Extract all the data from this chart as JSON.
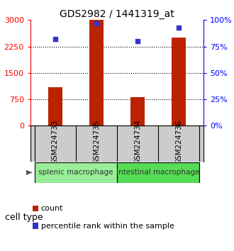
{
  "title": "GDS2982 / 1441319_at",
  "samples": [
    "GSM224733",
    "GSM224735",
    "GSM224734",
    "GSM224736"
  ],
  "counts": [
    1100,
    3000,
    800,
    2500
  ],
  "percentiles": [
    82,
    97,
    80,
    93
  ],
  "bar_color": "#bb2200",
  "dot_color": "#3333cc",
  "left_yticks": [
    0,
    750,
    1500,
    2250,
    3000
  ],
  "right_yticks": [
    0,
    25,
    50,
    75,
    100
  ],
  "left_ylim": [
    0,
    3000
  ],
  "right_ylim": [
    0,
    100
  ],
  "groups": [
    {
      "label": "splenic macrophage",
      "indices": [
        0,
        1
      ],
      "color": "#99ee99"
    },
    {
      "label": "intestinal macrophage",
      "indices": [
        2,
        3
      ],
      "color": "#55dd55"
    }
  ],
  "cell_type_label": "cell type",
  "legend_count_label": "count",
  "legend_pct_label": "percentile rank within the sample",
  "plot_bg": "#ffffff",
  "label_box_color": "#cccccc",
  "bar_width": 0.35,
  "title_fontsize": 10,
  "tick_fontsize": 8,
  "sample_fontsize": 7.5,
  "group_fontsize": 7.5,
  "legend_fontsize": 8,
  "cell_type_fontsize": 9
}
